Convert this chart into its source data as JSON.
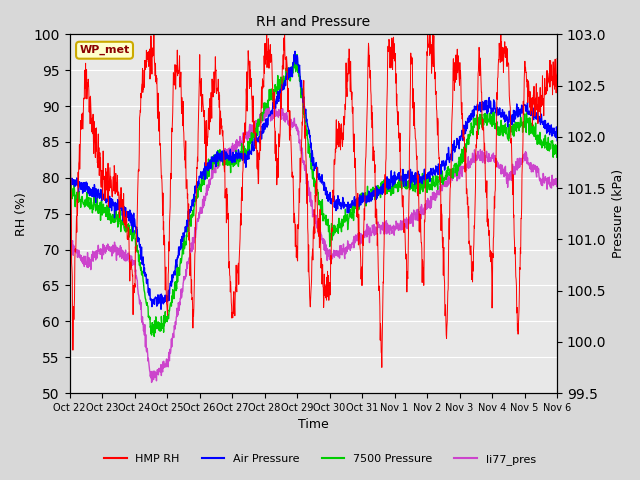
{
  "title": "RH and Pressure",
  "xlabel": "Time",
  "ylabel_left": "RH (%)",
  "ylabel_right": "Pressure (kPa)",
  "ylim_left": [
    50,
    100
  ],
  "ylim_right": [
    99.5,
    103.0
  ],
  "yticks_left": [
    50,
    55,
    60,
    65,
    70,
    75,
    80,
    85,
    90,
    95,
    100
  ],
  "yticks_right": [
    99.5,
    100.0,
    100.5,
    101.0,
    101.5,
    102.0,
    102.5,
    103.0
  ],
  "xtick_labels": [
    "Oct 22",
    "Oct 23",
    "Oct 24",
    "Oct 25",
    "Oct 26",
    "Oct 27",
    "Oct 28",
    "Oct 29",
    "Oct 30",
    "Oct 31",
    "Nov 1",
    "Nov 2",
    "Nov 3",
    "Nov 4",
    "Nov 5",
    "Nov 6"
  ],
  "background_color": "#d8d8d8",
  "plot_bg_color": "#e8e8e8",
  "grid_color": "#ffffff",
  "annotation_text": "WP_met",
  "annotation_bg": "#ffffcc",
  "annotation_border": "#ccaa00",
  "line_colors": {
    "HMP_RH": "#ff0000",
    "Air_Pressure": "#0000ff",
    "7500_Pressure": "#00cc00",
    "li77_pres": "#cc44cc"
  },
  "legend_labels": [
    "HMP RH",
    "Air Pressure",
    "7500 Pressure",
    "li77_pres"
  ],
  "legend_colors": [
    "#ff0000",
    "#0000ff",
    "#00cc00",
    "#cc44cc"
  ]
}
